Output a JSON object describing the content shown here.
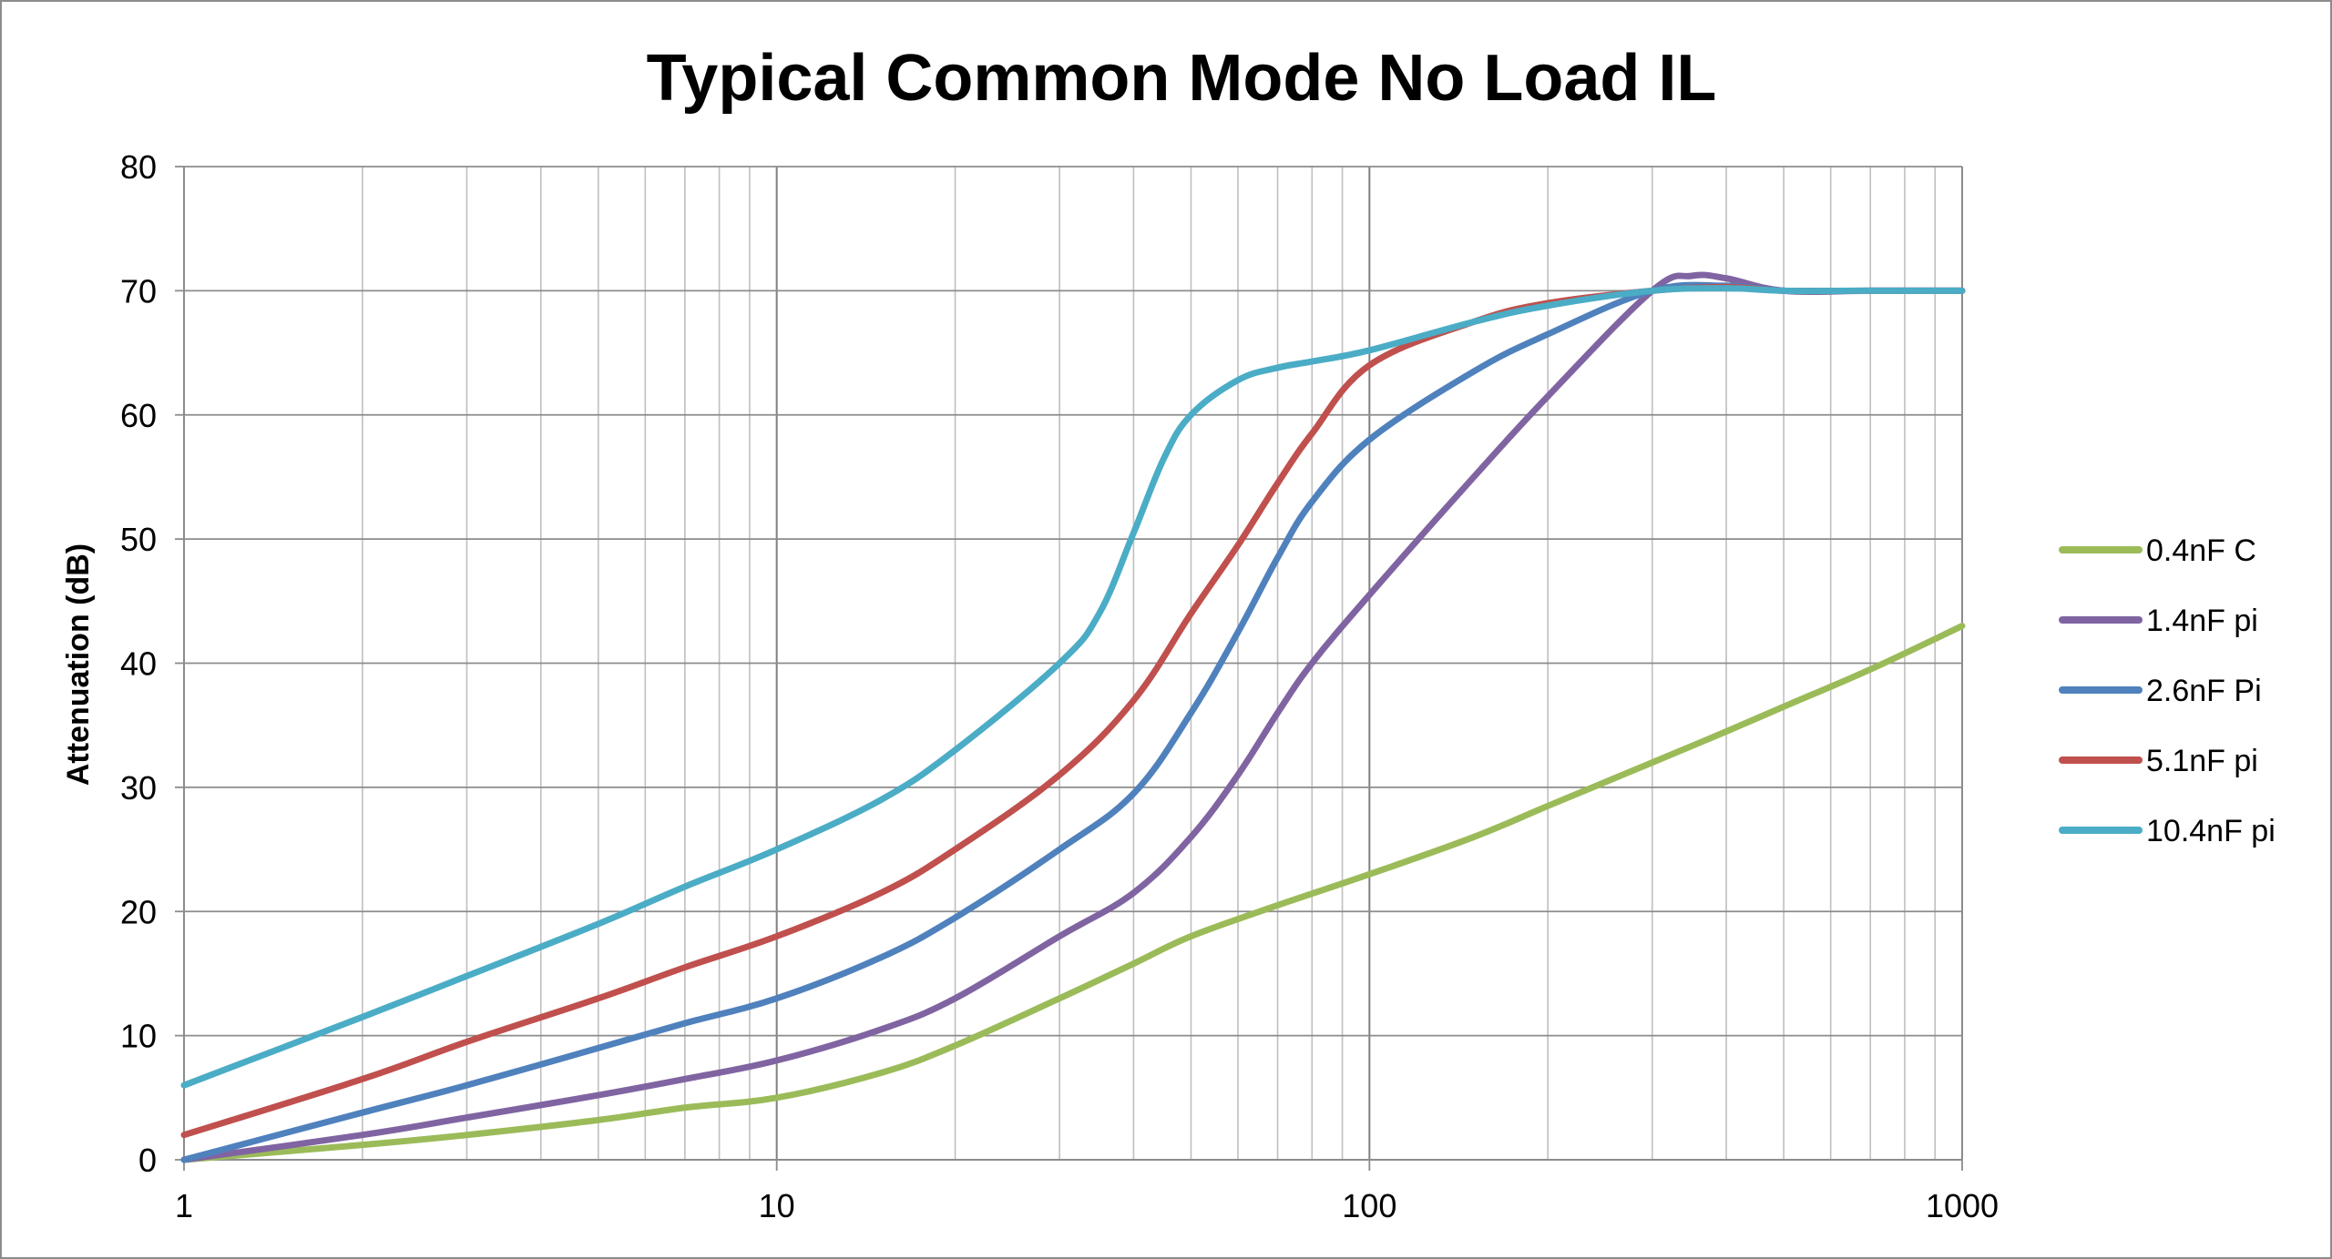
{
  "chart_data": {
    "type": "line",
    "title": "Typical Common Mode No Load IL",
    "xlabel": "",
    "ylabel": "Attenuation (dB)",
    "xscale": "log",
    "xlim": [
      1,
      1000
    ],
    "ylim": [
      0,
      80
    ],
    "x_tick_labels": [
      "1",
      "10",
      "100",
      "1000"
    ],
    "y_tick_labels": [
      "0",
      "10",
      "20",
      "30",
      "40",
      "50",
      "60",
      "70",
      "80"
    ],
    "grid": true,
    "legend_position": "right",
    "series": [
      {
        "name": "0.4nF C",
        "color": "#9BBB59",
        "x": [
          1,
          2,
          3,
          5,
          7,
          10,
          15,
          20,
          30,
          40,
          50,
          70,
          100,
          150,
          200,
          300,
          400,
          500,
          700,
          1000
        ],
        "y": [
          0,
          1.2,
          2,
          3.2,
          4.2,
          5,
          7,
          9.2,
          13,
          15.8,
          18,
          20.5,
          23,
          26,
          28.5,
          32,
          34.5,
          36.5,
          39.5,
          43
        ]
      },
      {
        "name": "1.4nF pi",
        "color": "#8064A2",
        "x": [
          1,
          2,
          3,
          5,
          7,
          10,
          15,
          20,
          30,
          40,
          50,
          60,
          70,
          80,
          100,
          150,
          200,
          300,
          350,
          400,
          500,
          700,
          1000
        ],
        "y": [
          0,
          2,
          3.4,
          5.2,
          6.5,
          8,
          10.5,
          13,
          18,
          21.5,
          26,
          31,
          36,
          40,
          45.5,
          55,
          61.5,
          70,
          71.2,
          71,
          70,
          70,
          70
        ]
      },
      {
        "name": "2.6nF Pi",
        "color": "#4F81BD",
        "x": [
          1,
          2,
          3,
          5,
          7,
          10,
          15,
          20,
          30,
          40,
          50,
          60,
          70,
          80,
          100,
          150,
          200,
          300,
          400,
          500,
          700,
          1000
        ],
        "y": [
          0,
          3.8,
          6,
          9,
          11,
          13,
          16.3,
          19.5,
          25,
          29.5,
          36,
          42.5,
          48.5,
          53,
          58,
          63.5,
          66.5,
          70,
          70.4,
          70,
          70,
          70
        ]
      },
      {
        "name": "5.1nF pi",
        "color": "#C0504D",
        "x": [
          1,
          2,
          3,
          5,
          7,
          10,
          15,
          20,
          30,
          40,
          50,
          60,
          70,
          80,
          100,
          150,
          200,
          300,
          400,
          500,
          700,
          1000
        ],
        "y": [
          2,
          6.5,
          9.5,
          13,
          15.5,
          18,
          21.5,
          25,
          31,
          37,
          44,
          49.5,
          54.5,
          58.5,
          64,
          67.5,
          69,
          70,
          70.3,
          70,
          70,
          70
        ]
      },
      {
        "name": "10.4nF pi",
        "color": "#4BACC6",
        "x": [
          1,
          2,
          3,
          5,
          7,
          10,
          15,
          20,
          30,
          35,
          40,
          45,
          50,
          60,
          70,
          80,
          100,
          150,
          200,
          300,
          400,
          500,
          700,
          1000
        ],
        "y": [
          6,
          11.5,
          14.8,
          19,
          22,
          25,
          29,
          33,
          40,
          44,
          50.5,
          56.5,
          60,
          62.8,
          63.8,
          64.3,
          65.2,
          67.5,
          68.8,
          70,
          70.2,
          70,
          70,
          70
        ]
      }
    ]
  }
}
